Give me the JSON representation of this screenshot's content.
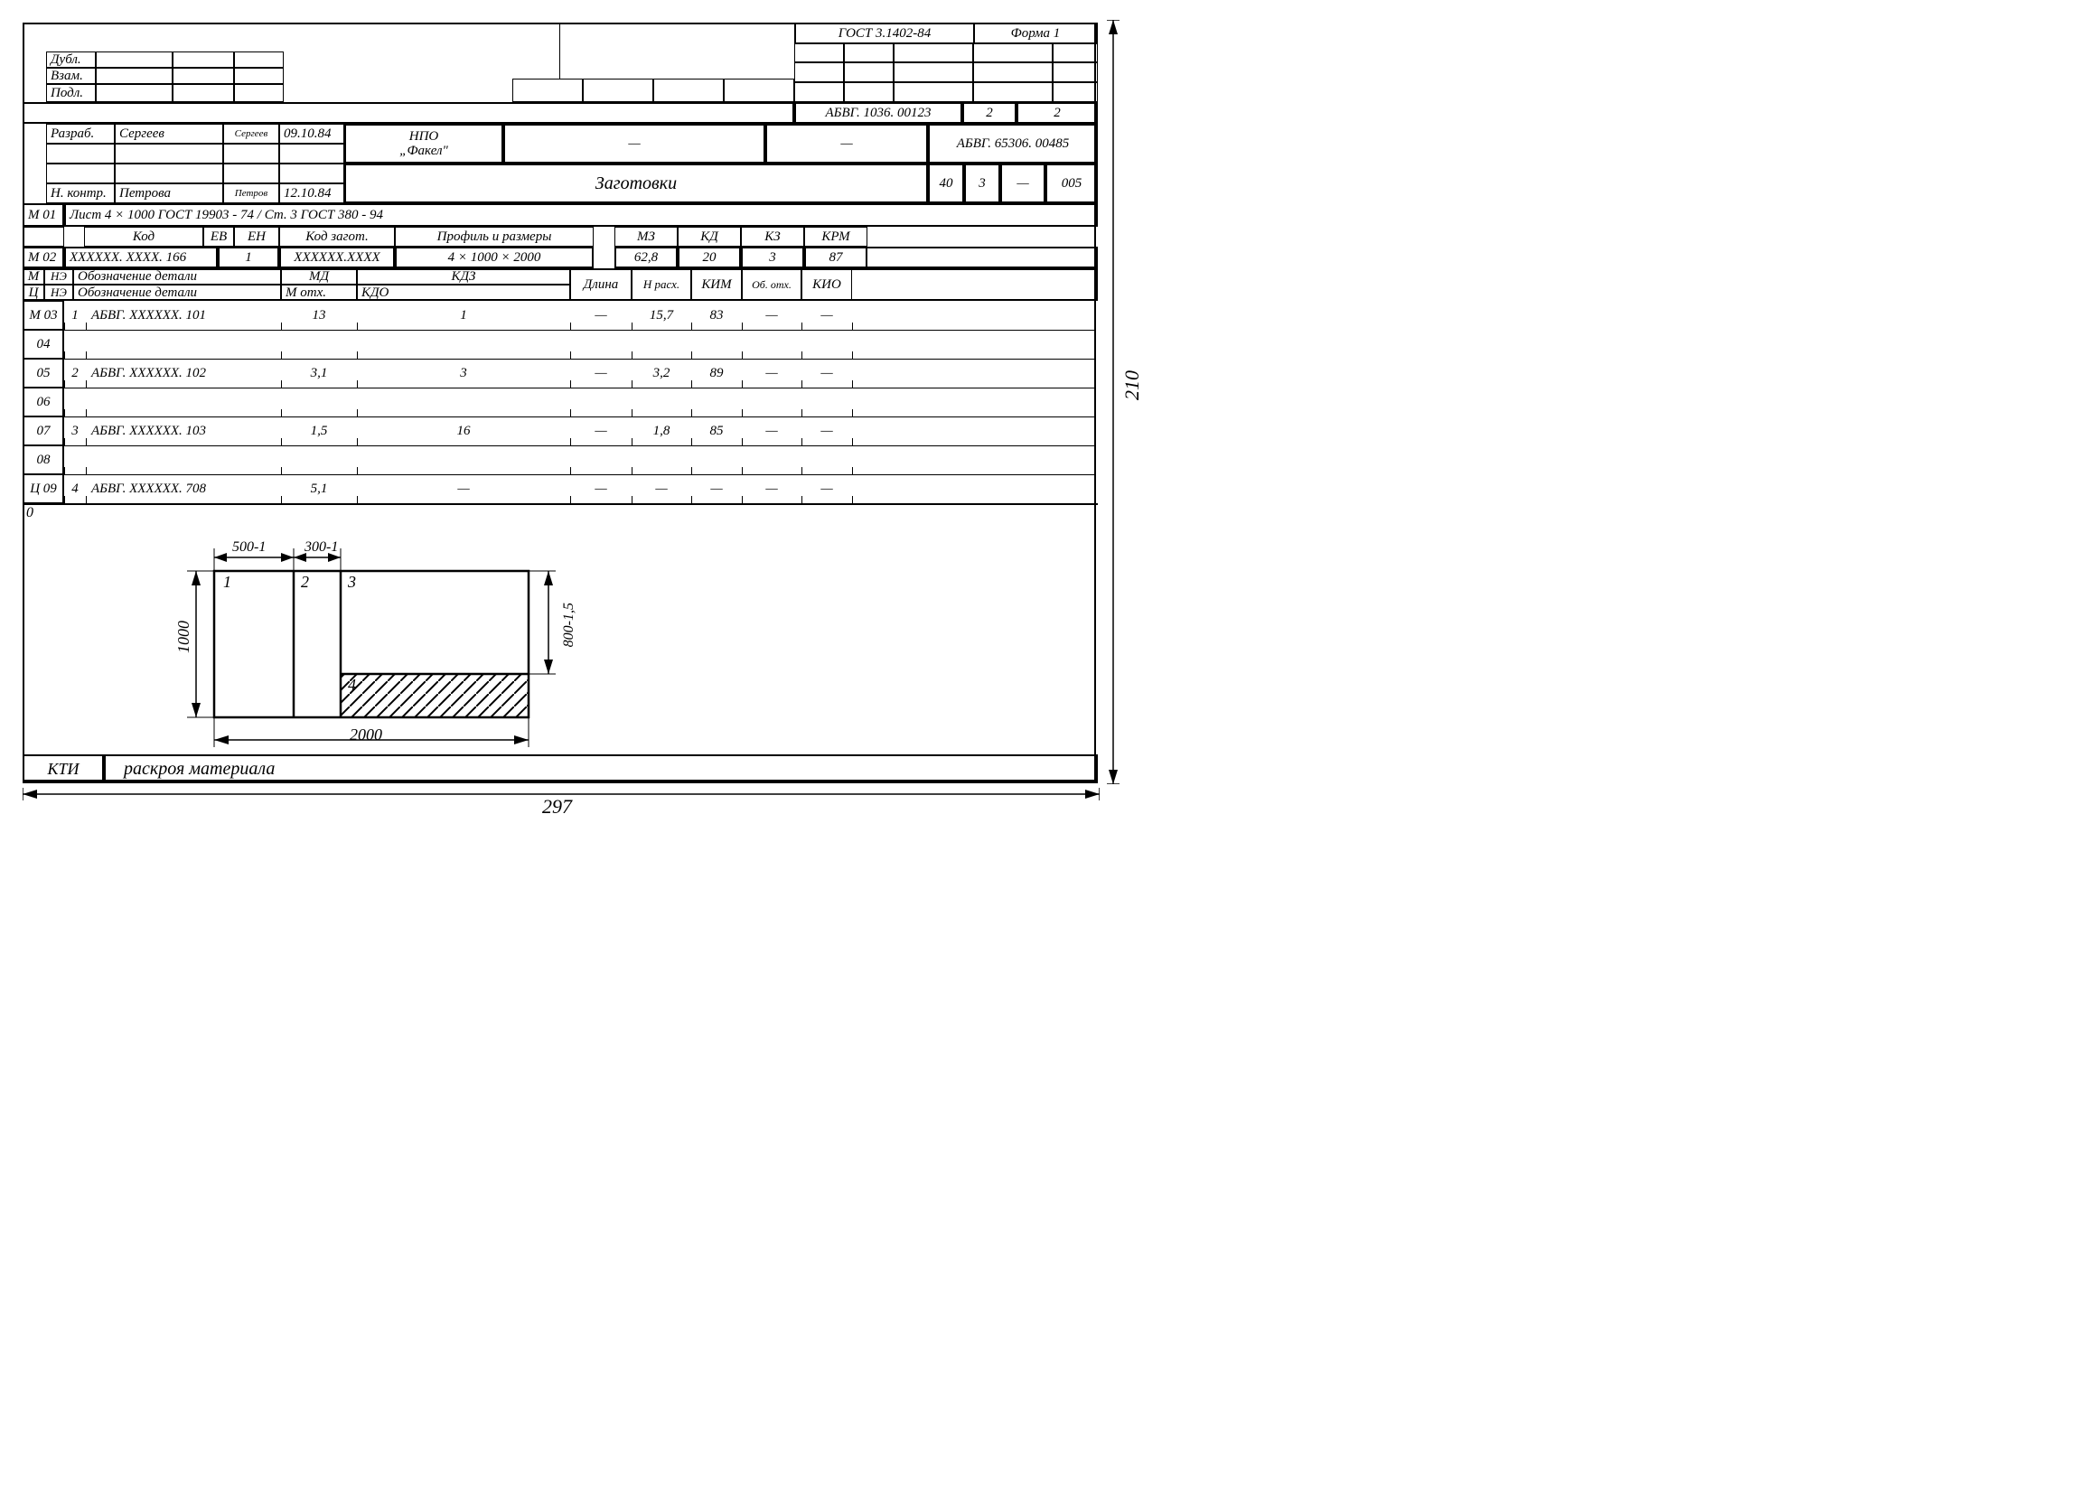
{
  "header": {
    "gost": "ГОСТ 3.1402-84",
    "forma": "Форма 1",
    "dubl": "Дубл.",
    "vzam": "Взам.",
    "podl": "Подл.",
    "doc_no": "АБВГ. 1036. 00123",
    "sheet": "2",
    "sheets": "2"
  },
  "title_block": {
    "razrab_lbl": "Разраб.",
    "razrab_name": "Сергеев",
    "razrab_sign": "Сергеев",
    "razrab_date": "09.10.84",
    "nkontr_lbl": "Н. контр.",
    "nkontr_name": "Петрова",
    "nkontr_sign": "Петров",
    "nkontr_date": "12.10.84",
    "org": "НПО",
    "org2": "„Факел\"",
    "dash1": "—",
    "dash2": "—",
    "code2": "АБВГ. 65306. 00485",
    "title": "Заготовки",
    "c1": "40",
    "c2": "3",
    "c3": "—",
    "c4": "005"
  },
  "m01": {
    "lbl": "М 01",
    "text": "Лист  4 × 1000 ГОСТ 19903 - 74 / Ст. 3  ГОСТ 380 - 94"
  },
  "hdr1": {
    "kod": "Код",
    "ev": "ЕВ",
    "en": "ЕН",
    "kod_zag": "Код загот.",
    "profil": "Профиль и размеры",
    "mz": "МЗ",
    "kd": "КД",
    "kz": "КЗ",
    "kpm": "КРМ"
  },
  "m02": {
    "lbl": "М 02",
    "kod": "ХХХХХХ. ХХХХ. 166",
    "ev": "1",
    "kod_zag": "ХХХХХХ.ХХХХ",
    "profil": "4 × 1000 × 2000",
    "mz": "62,8",
    "kd": "20",
    "kz": "3",
    "kpm": "87"
  },
  "hdr2": {
    "m": "М",
    "c": "Ц",
    "ne": "НЭ",
    "ne2": "НЭ",
    "oboz": "Обозначение детали",
    "oboz2": "Обозначение детали",
    "md": "МД",
    "motx": "М отх.",
    "kdz": "КДЗ",
    "kdo": "КДО",
    "dlina": "Длина",
    "nrasx": "Н расх.",
    "kim": "КИМ",
    "obotx": "Об. отх.",
    "kio": "КИО"
  },
  "rows": [
    {
      "lbl": "М 03",
      "ne": "1",
      "oboz": "АБВГ. ХХХХХХ. 101",
      "md": "13",
      "kdz": "1",
      "dlina": "—",
      "nrasx": "15,7",
      "kim": "83",
      "obotx": "—",
      "kio": "—"
    },
    {
      "lbl": "04"
    },
    {
      "lbl": "05",
      "ne": "2",
      "oboz": "АБВГ. ХХХХХХ. 102",
      "md": "3,1",
      "kdz": "3",
      "dlina": "—",
      "nrasx": "3,2",
      "kim": "89",
      "obotx": "—",
      "kio": "—"
    },
    {
      "lbl": "06"
    },
    {
      "lbl": "07",
      "ne": "3",
      "oboz": "АБВГ. ХХХХХХ. 103",
      "md": "1,5",
      "kdz": "16",
      "dlina": "—",
      "nrasx": "1,8",
      "kim": "85",
      "obotx": "—",
      "kio": "—"
    },
    {
      "lbl": "08"
    },
    {
      "lbl": "Ц 09",
      "ne": "4",
      "oboz": "АБВГ. ХХХХХХ. 708",
      "md": "5,1",
      "kdz": "—",
      "dlina": "—",
      "nrasx": "—",
      "kim": "—",
      "obotx": "—",
      "kio": "—"
    }
  ],
  "sketch": {
    "zero": "0",
    "d1": "500-1",
    "d2": "300-1",
    "w": "2000",
    "h": "1000",
    "h2": "800-1,5",
    "n1": "1",
    "n2": "2",
    "n3": "3",
    "n4": "4"
  },
  "footer": {
    "kti": "КТИ",
    "title": "раскроя  материала"
  },
  "dims": {
    "w": "297",
    "h": "210"
  }
}
